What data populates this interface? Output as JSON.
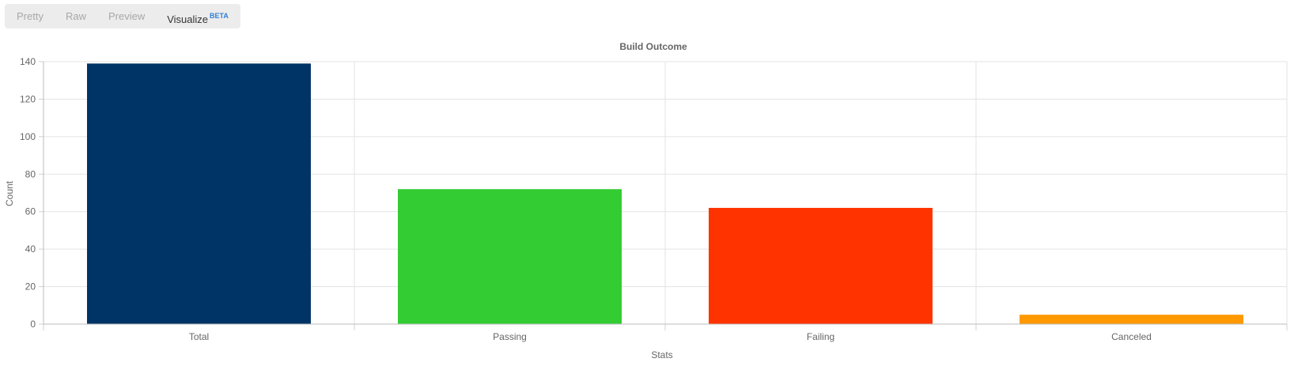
{
  "tabs": [
    {
      "label": "Pretty",
      "active": false
    },
    {
      "label": "Raw",
      "active": false
    },
    {
      "label": "Preview",
      "active": false
    },
    {
      "label": "Visualize",
      "badge": "BETA",
      "active": true
    }
  ],
  "chart_data": {
    "type": "bar",
    "title": "Build Outcome",
    "xlabel": "Stats",
    "ylabel": "Count",
    "categories": [
      "Total",
      "Passing",
      "Failing",
      "Canceled"
    ],
    "values": [
      139,
      72,
      62,
      5
    ],
    "colors": [
      "#003366",
      "#33cc33",
      "#ff3300",
      "#ff9900"
    ],
    "ylim": [
      0,
      140
    ],
    "yticks": [
      0,
      20,
      40,
      60,
      80,
      100,
      120,
      140
    ],
    "grid": true,
    "legend": "none"
  }
}
